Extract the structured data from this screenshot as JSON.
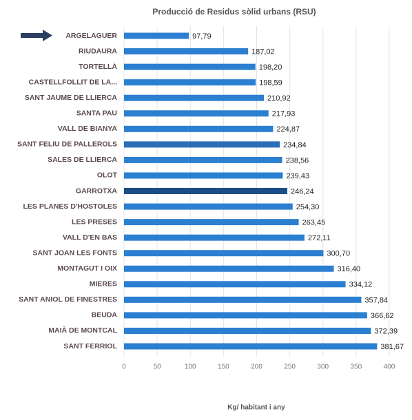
{
  "chart_data": {
    "type": "barh",
    "title": "Producció de Residus sòlid urbans (RSU)",
    "xlabel": "Kg/ habitant i any",
    "categories": [
      "ARGELAGUER",
      "RIUDAURA",
      "TORTELLÀ",
      "CASTELLFOLLIT DE LA...",
      "SANT JAUME DE LLIERCA",
      "SANTA PAU",
      "VALL DE BIANYA",
      "SANT FELIU DE PALLEROLS",
      "SALES DE LLIERCA",
      "OLOT",
      "GARROTXA",
      "LES PLANES D'HOSTOLES",
      "LES PRESES",
      "VALL D'EN BAS",
      "SANT JOAN LES FONTS",
      "MONTAGUT I OIX",
      "MIERES",
      "SANT ANIOL DE FINESTRES",
      "BEUDA",
      "MAIÀ DE MONTCAL",
      "SANT FERRIOL"
    ],
    "values": [
      97.79,
      187.02,
      198.2,
      198.59,
      210.92,
      217.93,
      224.87,
      234.84,
      238.56,
      239.43,
      246.24,
      254.3,
      263.45,
      272.11,
      300.7,
      316.4,
      334.12,
      357.84,
      366.62,
      372.39,
      381.67
    ],
    "value_labels": [
      "97,79",
      "187,02",
      "198,20",
      "198,59",
      "210,92",
      "217,93",
      "224,87",
      "234,84",
      "238,56",
      "239,43",
      "246,24",
      "254,30",
      "263,45",
      "272,11",
      "300,70",
      "316,40",
      "334,12",
      "357,84",
      "366,62",
      "372,39",
      "381,67"
    ],
    "colors": [
      "#2b7fd1",
      "#2b7fd1",
      "#2b7fd1",
      "#2b7fd1",
      "#2b7fd1",
      "#2b7fd1",
      "#2b7fd1",
      "#2a6fb8",
      "#2b7fd1",
      "#2b7fd1",
      "#1b4d86",
      "#2b7fd1",
      "#2b7fd1",
      "#2b7fd1",
      "#2b7fd1",
      "#2b7fd1",
      "#2b7fd1",
      "#2b7fd1",
      "#2b7fd1",
      "#2b7fd1",
      "#2b7fd1"
    ],
    "xlim": [
      0,
      400
    ],
    "xticks": [
      0,
      50,
      100,
      150,
      200,
      250,
      300,
      350,
      400
    ],
    "grid": true
  }
}
